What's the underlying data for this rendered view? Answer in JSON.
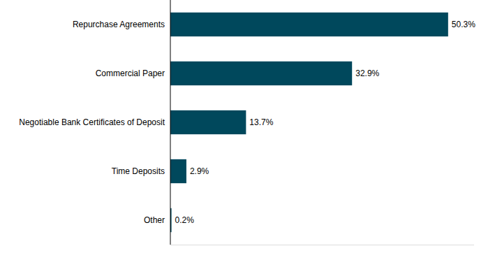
{
  "chart_data": {
    "type": "bar",
    "orientation": "horizontal",
    "categories": [
      "Repurchase Agreements",
      "Commercial Paper",
      "Negotiable Bank Certificates of Deposit",
      "Time Deposits",
      "Other"
    ],
    "values": [
      50.3,
      32.9,
      13.7,
      2.9,
      0.2
    ],
    "value_labels": [
      "50.3%",
      "32.9%",
      "13.7%",
      "2.9%",
      "0.2%"
    ],
    "color": "#00485c",
    "xlim": [
      0,
      55
    ],
    "data_labels": true,
    "tick_labels": "y",
    "grid": false
  }
}
